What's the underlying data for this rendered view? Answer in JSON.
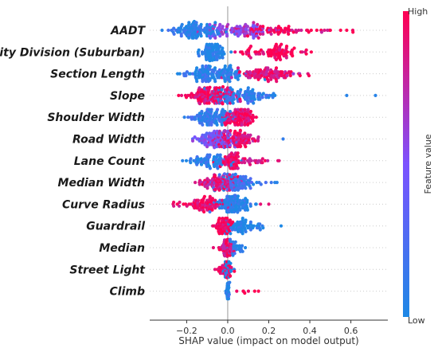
{
  "chart_data": {
    "type": "scatter",
    "subtype": "shap-beeswarm-summary",
    "xlabel": "SHAP value (impact on model output)",
    "x_ticks": [
      "−0.2",
      "0.0",
      "0.2",
      "0.4",
      "0.6"
    ],
    "x_tick_values": [
      -0.2,
      0.0,
      0.2,
      0.4,
      0.6
    ],
    "xlim": [
      -0.38,
      0.78
    ],
    "zero_line": true,
    "colorbar": {
      "label": "Feature value",
      "high_label": "High",
      "low_label": "Low",
      "low_color": "#1e88e5",
      "high_color": "#ff0052"
    },
    "features": [
      {
        "name": "AADT",
        "n": 260,
        "clusters": [
          {
            "center": -0.15,
            "spread": 0.07,
            "weight": 0.45,
            "hue": 0.05
          },
          {
            "center": 0.05,
            "spread": 0.08,
            "weight": 0.3,
            "hue": 0.6
          },
          {
            "center": 0.25,
            "spread": 0.12,
            "weight": 0.25,
            "hue": 0.95
          }
        ],
        "outliers": [
          [
            -0.32,
            0.05
          ],
          [
            0.5,
            1.0
          ],
          [
            0.55,
            1.0
          ],
          [
            0.58,
            1.0
          ],
          [
            0.61,
            1.0
          ]
        ]
      },
      {
        "name": "City Division (Suburban)",
        "n": 170,
        "clusters": [
          {
            "center": -0.08,
            "spread": 0.03,
            "weight": 0.5,
            "hue": 0.0
          },
          {
            "center": 0.22,
            "spread": 0.07,
            "weight": 0.5,
            "hue": 1.0
          }
        ]
      },
      {
        "name": "Section Length",
        "n": 230,
        "clusters": [
          {
            "center": -0.08,
            "spread": 0.08,
            "weight": 0.6,
            "hue": 0.08
          },
          {
            "center": 0.2,
            "spread": 0.08,
            "weight": 0.4,
            "hue": 0.9
          }
        ],
        "outliers": [
          [
            0.32,
            0.6
          ],
          [
            0.35,
            0.7
          ]
        ]
      },
      {
        "name": "Slope",
        "n": 220,
        "clusters": [
          {
            "center": -0.1,
            "spread": 0.06,
            "weight": 0.55,
            "hue": 0.9
          },
          {
            "center": 0.08,
            "spread": 0.09,
            "weight": 0.45,
            "hue": 0.1
          }
        ],
        "outliers": [
          [
            0.58,
            0.05
          ],
          [
            0.72,
            0.05
          ]
        ]
      },
      {
        "name": "Shoulder Width",
        "n": 200,
        "clusters": [
          {
            "center": -0.08,
            "spread": 0.05,
            "weight": 0.5,
            "hue": 0.1
          },
          {
            "center": 0.05,
            "spread": 0.04,
            "weight": 0.5,
            "hue": 0.95
          }
        ]
      },
      {
        "name": "Road Width",
        "n": 190,
        "clusters": [
          {
            "center": -0.07,
            "spread": 0.05,
            "weight": 0.5,
            "hue": 0.45
          },
          {
            "center": 0.04,
            "spread": 0.05,
            "weight": 0.5,
            "hue": 0.9
          }
        ],
        "outliers": [
          [
            0.27,
            0.1
          ]
        ]
      },
      {
        "name": "Lane Count",
        "n": 140,
        "clusters": [
          {
            "center": -0.08,
            "spread": 0.06,
            "weight": 0.45,
            "hue": 0.05
          },
          {
            "center": 0.02,
            "spread": 0.02,
            "weight": 0.35,
            "hue": 0.95
          },
          {
            "center": 0.12,
            "spread": 0.05,
            "weight": 0.2,
            "hue": 0.9
          }
        ],
        "outliers": [
          [
            -0.22,
            0.05
          ],
          [
            0.17,
            0.9
          ]
        ]
      },
      {
        "name": "Median Width",
        "n": 170,
        "clusters": [
          {
            "center": -0.05,
            "spread": 0.05,
            "weight": 0.55,
            "hue": 0.85
          },
          {
            "center": 0.05,
            "spread": 0.05,
            "weight": 0.45,
            "hue": 0.15
          }
        ],
        "outliers": [
          [
            0.23,
            0.05
          ],
          [
            0.24,
            0.05
          ]
        ]
      },
      {
        "name": "Curve Radius",
        "n": 190,
        "clusters": [
          {
            "center": -0.12,
            "spread": 0.06,
            "weight": 0.4,
            "hue": 0.95
          },
          {
            "center": 0.02,
            "spread": 0.04,
            "weight": 0.6,
            "hue": 0.05
          }
        ],
        "outliers": [
          [
            0.16,
            0.9
          ],
          [
            0.2,
            0.9
          ]
        ]
      },
      {
        "name": "Guardrail",
        "n": 120,
        "clusters": [
          {
            "center": -0.02,
            "spread": 0.02,
            "weight": 0.5,
            "hue": 1.0
          },
          {
            "center": 0.08,
            "spread": 0.05,
            "weight": 0.5,
            "hue": 0.0
          }
        ],
        "outliers": [
          [
            0.26,
            0.0
          ]
        ]
      },
      {
        "name": "Median",
        "n": 90,
        "clusters": [
          {
            "center": -0.01,
            "spread": 0.015,
            "weight": 0.7,
            "hue": 0.9
          },
          {
            "center": 0.03,
            "spread": 0.02,
            "weight": 0.3,
            "hue": 0.1
          }
        ],
        "outliers": [
          [
            -0.07,
            0.9
          ],
          [
            0.07,
            0.1
          ]
        ]
      },
      {
        "name": "Street Light",
        "n": 70,
        "clusters": [
          {
            "center": -0.02,
            "spread": 0.02,
            "weight": 0.5,
            "hue": 0.95
          },
          {
            "center": 0.0,
            "spread": 0.01,
            "weight": 0.5,
            "hue": 0.05
          }
        ]
      },
      {
        "name": "Climb",
        "n": 40,
        "clusters": [
          {
            "center": 0.0,
            "spread": 0.005,
            "weight": 0.85,
            "hue": 0.0
          },
          {
            "center": 0.1,
            "spread": 0.03,
            "weight": 0.15,
            "hue": 1.0
          }
        ],
        "outliers": [
          [
            0.15,
            1.0
          ]
        ]
      }
    ]
  }
}
